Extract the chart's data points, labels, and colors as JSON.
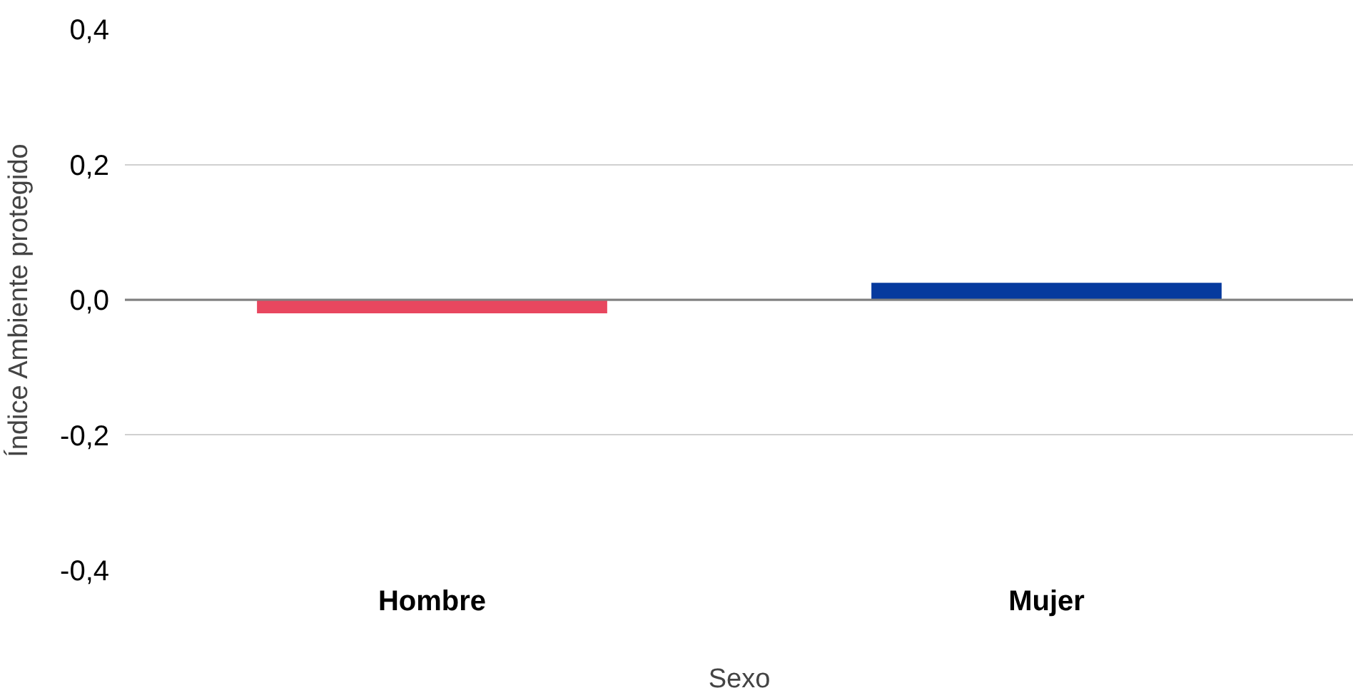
{
  "chart_data": {
    "type": "bar",
    "xlabel": "Sexo",
    "ylabel": "Índice Ambiente protegido",
    "categories": [
      "Hombre",
      "Mujer"
    ],
    "values": [
      -0.02,
      0.025
    ],
    "colors": [
      "#e8475f",
      "#063a9e"
    ],
    "ylim": [
      -0.4,
      0.4
    ],
    "yticks": [
      {
        "value": -0.4,
        "label": "-0,4"
      },
      {
        "value": -0.2,
        "label": "-0,2"
      },
      {
        "value": 0,
        "label": "0,0"
      },
      {
        "value": 0.2,
        "label": "0,2"
      },
      {
        "value": 0.4,
        "label": "0,4"
      }
    ],
    "grid": "y"
  }
}
